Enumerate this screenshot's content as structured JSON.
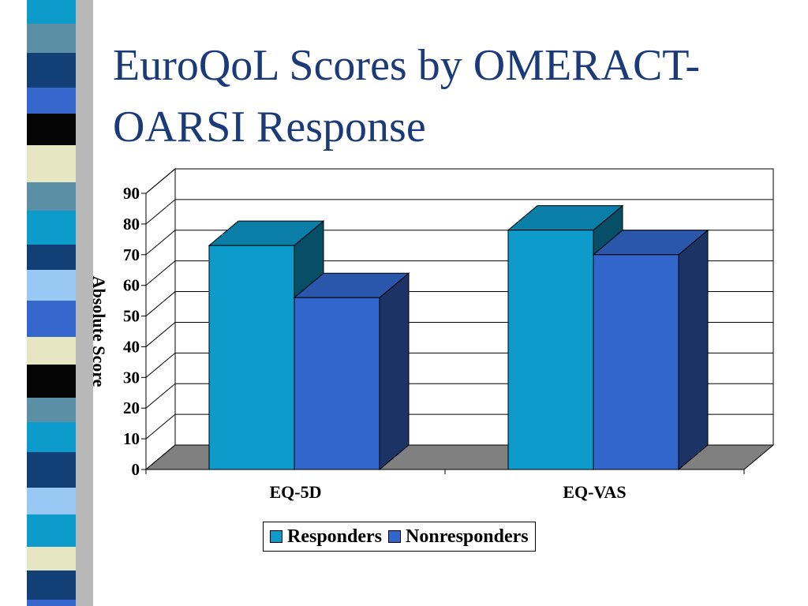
{
  "slide": {
    "title": "EuroQoL Scores by OMERACT-OARSI Response"
  },
  "colors": {
    "title": "#1a3a78",
    "responders": "#0c9bcb",
    "nonresponders": "#3366cc",
    "floor": "#808080"
  },
  "chart_data": {
    "type": "bar",
    "title": "",
    "xlabel": "",
    "ylabel": "Absolute Score",
    "ylim": [
      0,
      90
    ],
    "yticks": [
      0,
      10,
      20,
      30,
      40,
      50,
      60,
      70,
      80,
      90
    ],
    "categories": [
      "EQ-5D",
      "EQ-VAS"
    ],
    "series": [
      {
        "name": "Responders",
        "values": [
          73,
          78
        ]
      },
      {
        "name": "Nonresponders",
        "values": [
          56,
          70
        ]
      }
    ],
    "grid": true,
    "three_d": true,
    "legend_position": "bottom"
  }
}
